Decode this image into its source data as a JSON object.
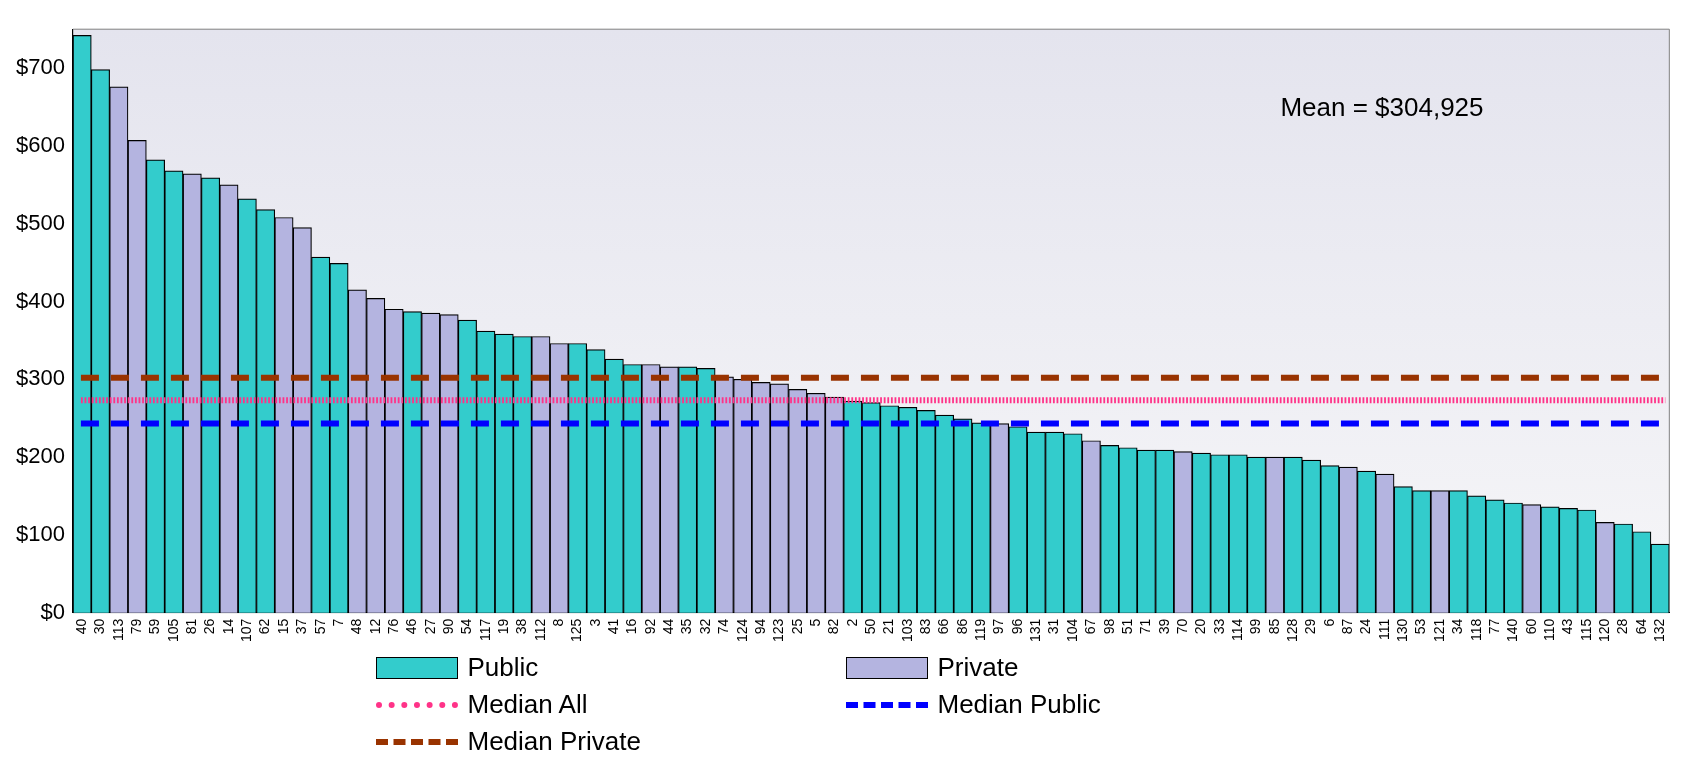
{
  "chart_data": {
    "type": "bar",
    "categories": [
      "40",
      "30",
      "113",
      "79",
      "59",
      "105",
      "81",
      "26",
      "14",
      "107",
      "62",
      "15",
      "37",
      "57",
      "7",
      "48",
      "12",
      "76",
      "46",
      "27",
      "90",
      "54",
      "117",
      "19",
      "38",
      "112",
      "8",
      "125",
      "3",
      "41",
      "16",
      "92",
      "44",
      "35",
      "32",
      "74",
      "124",
      "94",
      "123",
      "25",
      "5",
      "82",
      "2",
      "50",
      "21",
      "103",
      "83",
      "66",
      "86",
      "119",
      "97",
      "96",
      "131",
      "31",
      "104",
      "67",
      "98",
      "51",
      "71",
      "39",
      "70",
      "20",
      "33",
      "114",
      "99",
      "85",
      "128",
      "29",
      "6",
      "87",
      "24",
      "111",
      "130",
      "53",
      "121",
      "34",
      "118",
      "77",
      "140",
      "60",
      "110",
      "43",
      "115",
      "120",
      "28",
      "64",
      "132"
    ],
    "series": [
      {
        "name": "Public",
        "color": "#33cccc",
        "values": [
          742,
          698,
          null,
          null,
          582,
          568,
          null,
          559,
          null,
          532,
          518,
          null,
          null,
          457,
          449,
          null,
          null,
          null,
          387,
          null,
          null,
          376,
          362,
          358,
          355,
          null,
          null,
          346,
          338,
          326,
          319,
          null,
          null,
          316,
          314,
          null,
          null,
          null,
          null,
          null,
          null,
          null,
          272,
          270,
          266,
          264,
          260,
          254,
          249,
          244,
          null,
          239,
          232,
          232,
          230,
          null,
          215,
          212,
          209,
          209,
          null,
          205,
          203,
          203,
          200,
          null,
          200,
          196,
          189,
          null,
          182,
          null,
          162,
          157,
          null,
          157,
          150,
          145,
          141,
          null,
          136,
          134,
          132,
          null,
          114,
          104,
          88
        ]
      },
      {
        "name": "Private",
        "color": "#b4b4e0",
        "values": [
          null,
          null,
          676,
          607,
          null,
          null,
          564,
          null,
          550,
          null,
          null,
          508,
          495,
          null,
          null,
          415,
          404,
          390,
          null,
          385,
          383,
          null,
          null,
          null,
          null,
          355,
          346,
          null,
          null,
          null,
          null,
          319,
          316,
          null,
          null,
          303,
          300,
          296,
          294,
          287,
          282,
          277,
          null,
          null,
          null,
          null,
          null,
          null,
          null,
          null,
          243,
          null,
          null,
          null,
          null,
          221,
          null,
          null,
          null,
          null,
          207,
          null,
          null,
          null,
          null,
          200,
          null,
          null,
          null,
          187,
          null,
          178,
          null,
          null,
          157,
          null,
          null,
          null,
          null,
          139,
          null,
          null,
          null,
          116,
          null,
          null,
          null
        ]
      }
    ],
    "ylim": [
      0,
      750
    ],
    "yticks": [
      {
        "value": 0,
        "label": "$0"
      },
      {
        "value": 100,
        "label": "$100"
      },
      {
        "value": 200,
        "label": "$200"
      },
      {
        "value": 300,
        "label": "$300"
      },
      {
        "value": 400,
        "label": "$400"
      },
      {
        "value": 500,
        "label": "$500"
      },
      {
        "value": 600,
        "label": "$600"
      },
      {
        "value": 700,
        "label": "$700"
      }
    ],
    "ref_lines": [
      {
        "axis": "y",
        "value": 273,
        "label": "Median All",
        "color": "#ff3388",
        "line_style": "dotted"
      },
      {
        "axis": "y",
        "value": 243,
        "label": "Median Public",
        "color": "#0000ff",
        "line_style": "dashed"
      },
      {
        "axis": "y",
        "value": 302,
        "label": "Median Private",
        "color": "#993300",
        "line_style": "dashed"
      }
    ],
    "annotations": [
      "Mean = $304,925"
    ],
    "grid": false,
    "legend": "bottom"
  }
}
